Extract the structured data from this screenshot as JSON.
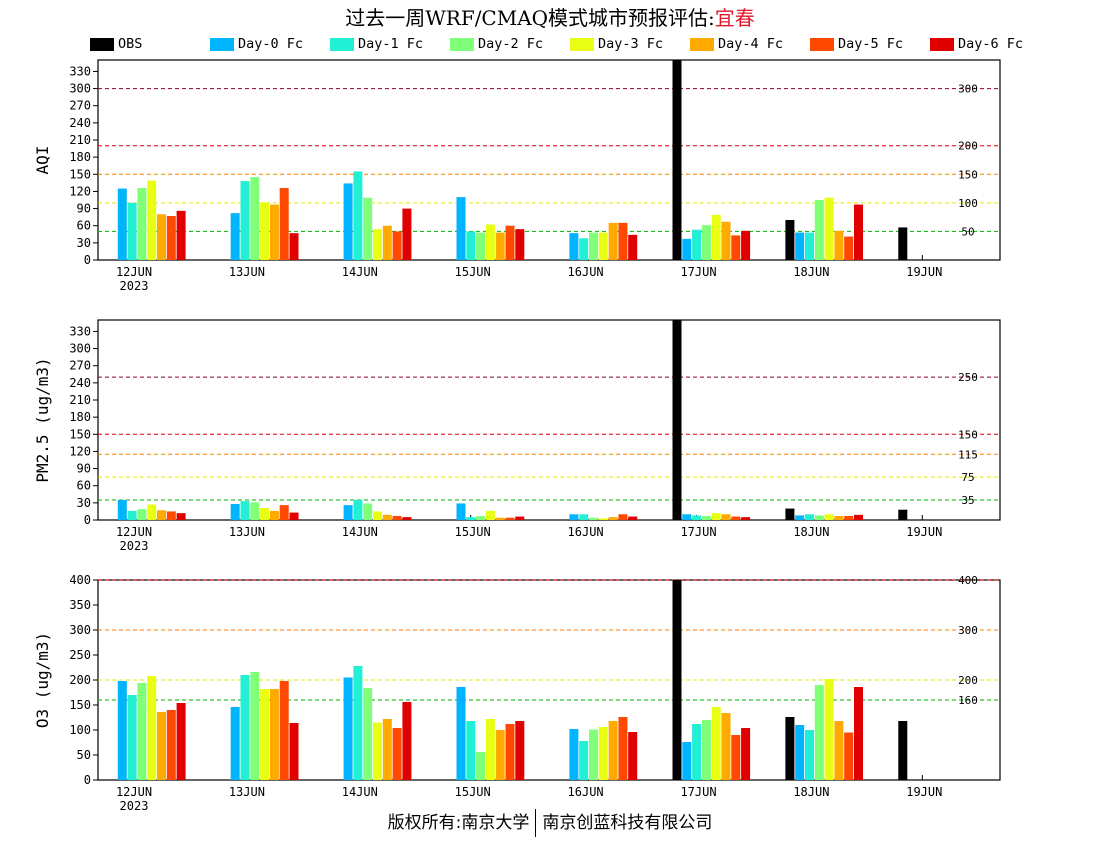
{
  "title": {
    "prefix": "过去一周WRF/CMAQ模式城市预报评估:",
    "city": "宜春",
    "city_color": "#e0192a"
  },
  "footer": {
    "left": "版权所有:南京大学",
    "right": "南京创蓝科技有限公司"
  },
  "legend": [
    {
      "label": "OBS",
      "color": "#000000"
    },
    {
      "label": "Day-0 Fc",
      "color": "#00b4ff"
    },
    {
      "label": "Day-1 Fc",
      "color": "#22f0d4"
    },
    {
      "label": "Day-2 Fc",
      "color": "#80ff78"
    },
    {
      "label": "Day-3 Fc",
      "color": "#e8ff14"
    },
    {
      "label": "Day-4 Fc",
      "color": "#ffaa00"
    },
    {
      "label": "Day-5 Fc",
      "color": "#ff4800"
    },
    {
      "label": "Day-6 Fc",
      "color": "#e00000"
    }
  ],
  "chart_data": [
    {
      "type": "bar",
      "ylabel": "AQI",
      "ylim": [
        0,
        350
      ],
      "yticks": [
        0,
        30,
        60,
        90,
        120,
        150,
        180,
        210,
        240,
        270,
        300,
        330
      ],
      "categories": [
        "12JUN",
        "13JUN",
        "14JUN",
        "15JUN",
        "16JUN",
        "17JUN",
        "18JUN",
        "19JUN"
      ],
      "year_label": "2023",
      "thresholds": [
        {
          "value": 50,
          "label": "50",
          "color": "#00b000"
        },
        {
          "value": 100,
          "label": "100",
          "color": "#e6e600"
        },
        {
          "value": 150,
          "label": "150",
          "color": "#ff8000"
        },
        {
          "value": 200,
          "label": "200",
          "color": "#e00000"
        },
        {
          "value": 300,
          "label": "300",
          "color": "#8b0030"
        }
      ],
      "series": [
        {
          "name": "OBS",
          "values": [
            null,
            null,
            null,
            null,
            null,
            350,
            70,
            57
          ]
        },
        {
          "name": "Day-0 Fc",
          "values": [
            125,
            82,
            134,
            110,
            47,
            37,
            48,
            null
          ]
        },
        {
          "name": "Day-1 Fc",
          "values": [
            100,
            138,
            155,
            50,
            38,
            53,
            48,
            null
          ]
        },
        {
          "name": "Day-2 Fc",
          "values": [
            126,
            145,
            109,
            48,
            48,
            61,
            105,
            null
          ]
        },
        {
          "name": "Day-3 Fc",
          "values": [
            139,
            101,
            54,
            62,
            48,
            79,
            109,
            null
          ]
        },
        {
          "name": "Day-4 Fc",
          "values": [
            80,
            97,
            60,
            48,
            65,
            67,
            51,
            null
          ]
        },
        {
          "name": "Day-5 Fc",
          "values": [
            77,
            126,
            50,
            60,
            65,
            43,
            41,
            null
          ]
        },
        {
          "name": "Day-6 Fc",
          "values": [
            86,
            47,
            90,
            54,
            44,
            51,
            97,
            null
          ]
        }
      ]
    },
    {
      "type": "bar",
      "ylabel": "PM2.5 (ug/m3)",
      "ylim": [
        0,
        350
      ],
      "yticks": [
        0,
        30,
        60,
        90,
        120,
        150,
        180,
        210,
        240,
        270,
        300,
        330
      ],
      "categories": [
        "12JUN",
        "13JUN",
        "14JUN",
        "15JUN",
        "16JUN",
        "17JUN",
        "18JUN",
        "19JUN"
      ],
      "year_label": "2023",
      "thresholds": [
        {
          "value": 35,
          "label": "35",
          "color": "#00b000"
        },
        {
          "value": 75,
          "label": "75",
          "color": "#e6e600"
        },
        {
          "value": 115,
          "label": "115",
          "color": "#ff8000"
        },
        {
          "value": 150,
          "label": "150",
          "color": "#e00000"
        },
        {
          "value": 250,
          "label": "250",
          "color": "#8b0030"
        }
      ],
      "series": [
        {
          "name": "OBS",
          "values": [
            null,
            null,
            null,
            null,
            null,
            350,
            20,
            18
          ]
        },
        {
          "name": "Day-0 Fc",
          "values": [
            35,
            28,
            26,
            29,
            10,
            10,
            8,
            null
          ]
        },
        {
          "name": "Day-1 Fc",
          "values": [
            16,
            33,
            35,
            5,
            10,
            8,
            10,
            null
          ]
        },
        {
          "name": "Day-2 Fc",
          "values": [
            19,
            31,
            29,
            7,
            4,
            7,
            8,
            null
          ]
        },
        {
          "name": "Day-3 Fc",
          "values": [
            27,
            21,
            15,
            16,
            3,
            12,
            10,
            null
          ]
        },
        {
          "name": "Day-4 Fc",
          "values": [
            17,
            16,
            9,
            4,
            5,
            10,
            7,
            null
          ]
        },
        {
          "name": "Day-5 Fc",
          "values": [
            15,
            26,
            7,
            4,
            10,
            6,
            7,
            null
          ]
        },
        {
          "name": "Day-6 Fc",
          "values": [
            12,
            13,
            5,
            6,
            6,
            5,
            9,
            null
          ]
        }
      ]
    },
    {
      "type": "bar",
      "ylabel": "O3 (ug/m3)",
      "ylim": [
        0,
        400
      ],
      "yticks": [
        0,
        50,
        100,
        150,
        200,
        250,
        300,
        350,
        400
      ],
      "categories": [
        "12JUN",
        "13JUN",
        "14JUN",
        "15JUN",
        "16JUN",
        "17JUN",
        "18JUN",
        "19JUN"
      ],
      "year_label": "2023",
      "thresholds": [
        {
          "value": 160,
          "label": "160",
          "color": "#00b000"
        },
        {
          "value": 200,
          "label": "200",
          "color": "#e6e600"
        },
        {
          "value": 300,
          "label": "300",
          "color": "#ff8000"
        },
        {
          "value": 400,
          "label": "400",
          "color": "#e00000"
        }
      ],
      "series": [
        {
          "name": "OBS",
          "values": [
            null,
            null,
            null,
            null,
            null,
            400,
            126,
            118
          ]
        },
        {
          "name": "Day-0 Fc",
          "values": [
            198,
            146,
            205,
            186,
            102,
            76,
            110,
            null
          ]
        },
        {
          "name": "Day-1 Fc",
          "values": [
            170,
            210,
            228,
            118,
            78,
            112,
            100,
            null
          ]
        },
        {
          "name": "Day-2 Fc",
          "values": [
            194,
            216,
            184,
            56,
            101,
            120,
            190,
            null
          ]
        },
        {
          "name": "Day-3 Fc",
          "values": [
            208,
            182,
            115,
            122,
            106,
            146,
            202,
            null
          ]
        },
        {
          "name": "Day-4 Fc",
          "values": [
            136,
            182,
            122,
            100,
            118,
            134,
            118,
            null
          ]
        },
        {
          "name": "Day-5 Fc",
          "values": [
            140,
            198,
            104,
            112,
            126,
            90,
            95,
            null
          ]
        },
        {
          "name": "Day-6 Fc",
          "values": [
            154,
            114,
            156,
            118,
            96,
            104,
            186,
            null
          ]
        }
      ]
    }
  ]
}
